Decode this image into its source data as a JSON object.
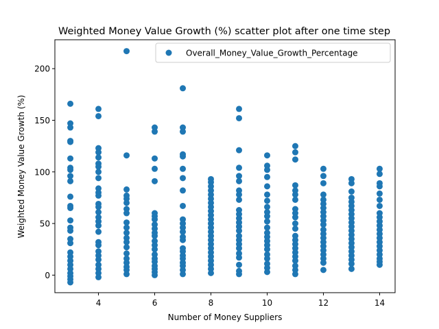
{
  "chart_data": {
    "type": "scatter",
    "title": "Weighted Money Value Growth (%) scatter plot after one time step",
    "xlabel": "Number of Money Suppliers",
    "ylabel": "Weighted Money Value Growth (%)",
    "xlim": [
      2.45,
      14.55
    ],
    "ylim": [
      -17,
      228
    ],
    "xticks": [
      4,
      6,
      8,
      10,
      12,
      14
    ],
    "yticks": [
      0,
      50,
      100,
      150,
      200
    ],
    "grid": false,
    "legend_position": "top-right",
    "point_color": "#1f77b4",
    "series": [
      {
        "name": "Overall_Money_Value_Growth_Percentage",
        "points": [
          [
            3,
            166
          ],
          [
            3,
            147
          ],
          [
            3,
            143
          ],
          [
            3,
            130
          ],
          [
            3,
            129
          ],
          [
            3,
            113
          ],
          [
            3,
            104
          ],
          [
            3,
            102
          ],
          [
            3,
            96
          ],
          [
            3,
            91
          ],
          [
            3,
            76
          ],
          [
            3,
            67
          ],
          [
            3,
            65
          ],
          [
            3,
            53
          ],
          [
            3,
            46
          ],
          [
            3,
            43
          ],
          [
            3,
            35
          ],
          [
            3,
            31
          ],
          [
            3,
            22
          ],
          [
            3,
            18
          ],
          [
            3,
            14
          ],
          [
            3,
            10
          ],
          [
            3,
            6
          ],
          [
            3,
            2
          ],
          [
            3,
            -1
          ],
          [
            3,
            -4
          ],
          [
            3,
            -7
          ],
          [
            4,
            161
          ],
          [
            4,
            154
          ],
          [
            4,
            123
          ],
          [
            4,
            119
          ],
          [
            4,
            114
          ],
          [
            4,
            108
          ],
          [
            4,
            105
          ],
          [
            4,
            100
          ],
          [
            4,
            94
          ],
          [
            4,
            84
          ],
          [
            4,
            80
          ],
          [
            4,
            77
          ],
          [
            4,
            69
          ],
          [
            4,
            66
          ],
          [
            4,
            61
          ],
          [
            4,
            56
          ],
          [
            4,
            52
          ],
          [
            4,
            48
          ],
          [
            4,
            42
          ],
          [
            4,
            32
          ],
          [
            4,
            29
          ],
          [
            4,
            23
          ],
          [
            4,
            19
          ],
          [
            4,
            15
          ],
          [
            4,
            10
          ],
          [
            4,
            6
          ],
          [
            4,
            2
          ],
          [
            4,
            -2
          ],
          [
            5,
            217
          ],
          [
            5,
            116
          ],
          [
            5,
            83
          ],
          [
            5,
            77
          ],
          [
            5,
            74
          ],
          [
            5,
            70
          ],
          [
            5,
            64
          ],
          [
            5,
            60
          ],
          [
            5,
            51
          ],
          [
            5,
            46
          ],
          [
            5,
            41
          ],
          [
            5,
            36
          ],
          [
            5,
            32
          ],
          [
            5,
            27
          ],
          [
            5,
            21
          ],
          [
            5,
            16
          ],
          [
            5,
            12
          ],
          [
            5,
            8
          ],
          [
            5,
            5
          ],
          [
            5,
            1
          ],
          [
            6,
            143
          ],
          [
            6,
            139
          ],
          [
            6,
            113
          ],
          [
            6,
            103
          ],
          [
            6,
            91
          ],
          [
            6,
            60
          ],
          [
            6,
            57
          ],
          [
            6,
            54
          ],
          [
            6,
            49
          ],
          [
            6,
            45
          ],
          [
            6,
            41
          ],
          [
            6,
            38
          ],
          [
            6,
            33
          ],
          [
            6,
            29
          ],
          [
            6,
            25
          ],
          [
            6,
            20
          ],
          [
            6,
            16
          ],
          [
            6,
            13
          ],
          [
            6,
            9
          ],
          [
            6,
            6
          ],
          [
            6,
            3
          ],
          [
            6,
            0
          ],
          [
            7,
            181
          ],
          [
            7,
            143
          ],
          [
            7,
            139
          ],
          [
            7,
            117
          ],
          [
            7,
            115
          ],
          [
            7,
            103
          ],
          [
            7,
            94
          ],
          [
            7,
            82
          ],
          [
            7,
            67
          ],
          [
            7,
            54
          ],
          [
            7,
            50
          ],
          [
            7,
            46
          ],
          [
            7,
            42
          ],
          [
            7,
            37
          ],
          [
            7,
            34
          ],
          [
            7,
            26
          ],
          [
            7,
            23
          ],
          [
            7,
            19
          ],
          [
            7,
            16
          ],
          [
            7,
            12
          ],
          [
            7,
            9
          ],
          [
            7,
            5
          ],
          [
            7,
            1
          ],
          [
            8,
            93
          ],
          [
            8,
            90
          ],
          [
            8,
            86
          ],
          [
            8,
            82
          ],
          [
            8,
            78
          ],
          [
            8,
            74
          ],
          [
            8,
            70
          ],
          [
            8,
            66
          ],
          [
            8,
            62
          ],
          [
            8,
            58
          ],
          [
            8,
            54
          ],
          [
            8,
            50
          ],
          [
            8,
            46
          ],
          [
            8,
            42
          ],
          [
            8,
            38
          ],
          [
            8,
            34
          ],
          [
            8,
            30
          ],
          [
            8,
            26
          ],
          [
            8,
            22
          ],
          [
            8,
            18
          ],
          [
            8,
            14
          ],
          [
            8,
            10
          ],
          [
            8,
            6
          ],
          [
            8,
            2
          ],
          [
            9,
            161
          ],
          [
            9,
            152
          ],
          [
            9,
            121
          ],
          [
            9,
            104
          ],
          [
            9,
            96
          ],
          [
            9,
            91
          ],
          [
            9,
            82
          ],
          [
            9,
            78
          ],
          [
            9,
            73
          ],
          [
            9,
            63
          ],
          [
            9,
            59
          ],
          [
            9,
            55
          ],
          [
            9,
            51
          ],
          [
            9,
            47
          ],
          [
            9,
            43
          ],
          [
            9,
            38
          ],
          [
            9,
            34
          ],
          [
            9,
            30
          ],
          [
            9,
            26
          ],
          [
            9,
            21
          ],
          [
            9,
            17
          ],
          [
            9,
            10
          ],
          [
            9,
            4
          ],
          [
            9,
            1
          ],
          [
            10,
            116
          ],
          [
            10,
            106
          ],
          [
            10,
            102
          ],
          [
            10,
            95
          ],
          [
            10,
            86
          ],
          [
            10,
            78
          ],
          [
            10,
            72
          ],
          [
            10,
            66
          ],
          [
            10,
            61
          ],
          [
            10,
            57
          ],
          [
            10,
            52
          ],
          [
            10,
            46
          ],
          [
            10,
            41
          ],
          [
            10,
            37
          ],
          [
            10,
            33
          ],
          [
            10,
            29
          ],
          [
            10,
            25
          ],
          [
            10,
            20
          ],
          [
            10,
            16
          ],
          [
            10,
            11
          ],
          [
            10,
            7
          ],
          [
            10,
            3
          ],
          [
            11,
            125
          ],
          [
            11,
            119
          ],
          [
            11,
            112
          ],
          [
            11,
            87
          ],
          [
            11,
            82
          ],
          [
            11,
            78
          ],
          [
            11,
            73
          ],
          [
            11,
            64
          ],
          [
            11,
            60
          ],
          [
            11,
            56
          ],
          [
            11,
            50
          ],
          [
            11,
            45
          ],
          [
            11,
            38
          ],
          [
            11,
            34
          ],
          [
            11,
            30
          ],
          [
            11,
            26
          ],
          [
            11,
            22
          ],
          [
            11,
            18
          ],
          [
            11,
            14
          ],
          [
            11,
            9
          ],
          [
            11,
            5
          ],
          [
            11,
            1
          ],
          [
            12,
            103
          ],
          [
            12,
            96
          ],
          [
            12,
            89
          ],
          [
            12,
            78
          ],
          [
            12,
            73
          ],
          [
            12,
            69
          ],
          [
            12,
            65
          ],
          [
            12,
            61
          ],
          [
            12,
            57
          ],
          [
            12,
            53
          ],
          [
            12,
            49
          ],
          [
            12,
            44
          ],
          [
            12,
            40
          ],
          [
            12,
            36
          ],
          [
            12,
            32
          ],
          [
            12,
            28
          ],
          [
            12,
            24
          ],
          [
            12,
            20
          ],
          [
            12,
            16
          ],
          [
            12,
            12
          ],
          [
            12,
            5
          ],
          [
            13,
            93
          ],
          [
            13,
            89
          ],
          [
            13,
            81
          ],
          [
            13,
            75
          ],
          [
            13,
            71
          ],
          [
            13,
            67
          ],
          [
            13,
            63
          ],
          [
            13,
            59
          ],
          [
            13,
            55
          ],
          [
            13,
            51
          ],
          [
            13,
            47
          ],
          [
            13,
            43
          ],
          [
            13,
            39
          ],
          [
            13,
            35
          ],
          [
            13,
            31
          ],
          [
            13,
            27
          ],
          [
            13,
            23
          ],
          [
            13,
            19
          ],
          [
            13,
            15
          ],
          [
            13,
            11
          ],
          [
            13,
            6
          ],
          [
            14,
            103
          ],
          [
            14,
            98
          ],
          [
            14,
            89
          ],
          [
            14,
            86
          ],
          [
            14,
            79
          ],
          [
            14,
            73
          ],
          [
            14,
            67
          ],
          [
            14,
            60
          ],
          [
            14,
            56
          ],
          [
            14,
            52
          ],
          [
            14,
            48
          ],
          [
            14,
            44
          ],
          [
            14,
            40
          ],
          [
            14,
            36
          ],
          [
            14,
            32
          ],
          [
            14,
            28
          ],
          [
            14,
            24
          ],
          [
            14,
            20
          ],
          [
            14,
            16
          ],
          [
            14,
            13
          ],
          [
            14,
            10
          ]
        ]
      }
    ]
  }
}
